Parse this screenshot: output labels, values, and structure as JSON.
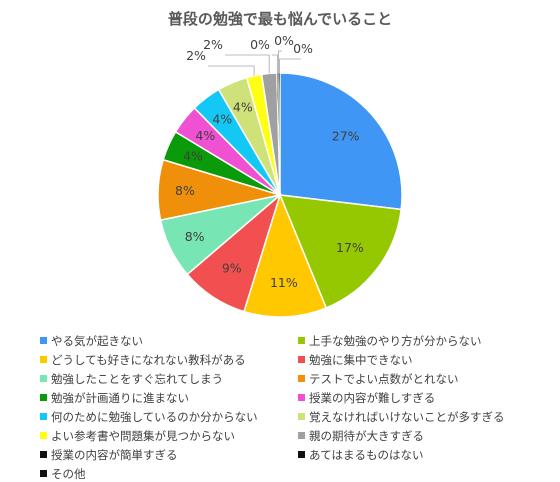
{
  "chart_data": {
    "type": "pie",
    "title": "普段の勉強で最も悩んでいること",
    "slices": [
      {
        "label": "やる気が起きない",
        "value": 27,
        "display": "27%",
        "color": "#3f96f5"
      },
      {
        "label": "上手な勉強のやり方が分からない",
        "value": 17,
        "display": "17%",
        "color": "#95c800"
      },
      {
        "label": "どうしても好きになれない教科がある",
        "value": 11,
        "display": "11%",
        "color": "#ffc800"
      },
      {
        "label": "勉強に集中できない",
        "value": 9,
        "display": "9%",
        "color": "#f25050"
      },
      {
        "label": "勉強したことをすぐ忘れてしまう",
        "value": 8,
        "display": "8%",
        "color": "#78e6b4"
      },
      {
        "label": "テストでよい点数がとれない",
        "value": 8,
        "display": "8%",
        "color": "#f0900a"
      },
      {
        "label": "勉強が計画通りに進まない",
        "value": 4,
        "display": "4%",
        "color": "#0a9a0a"
      },
      {
        "label": "授業の内容が難しすぎる",
        "value": 4,
        "display": "4%",
        "color": "#f050d2"
      },
      {
        "label": "何のために勉強しているのか分からない",
        "value": 4,
        "display": "4%",
        "color": "#14c8f5"
      },
      {
        "label": "覚えなければいけないことが多すぎる",
        "value": 4,
        "display": "4%",
        "color": "#cfe27a"
      },
      {
        "label": "よい参考書や問題集が見つからない",
        "value": 2,
        "display": "2%",
        "color": "#ffff14"
      },
      {
        "label": "親の期待が大きすぎる",
        "value": 2,
        "display": "2%",
        "color": "#a0a0a0"
      },
      {
        "label": "授業の内容が簡単すぎる",
        "value": 0,
        "display": "0%",
        "color": "#111111"
      },
      {
        "label": "あてはまるものはない",
        "value": 0,
        "display": "0%",
        "color": "#111111"
      },
      {
        "label": "その他",
        "value": 0,
        "display": "0%",
        "color": "#111111"
      }
    ],
    "legend_position": "bottom"
  }
}
